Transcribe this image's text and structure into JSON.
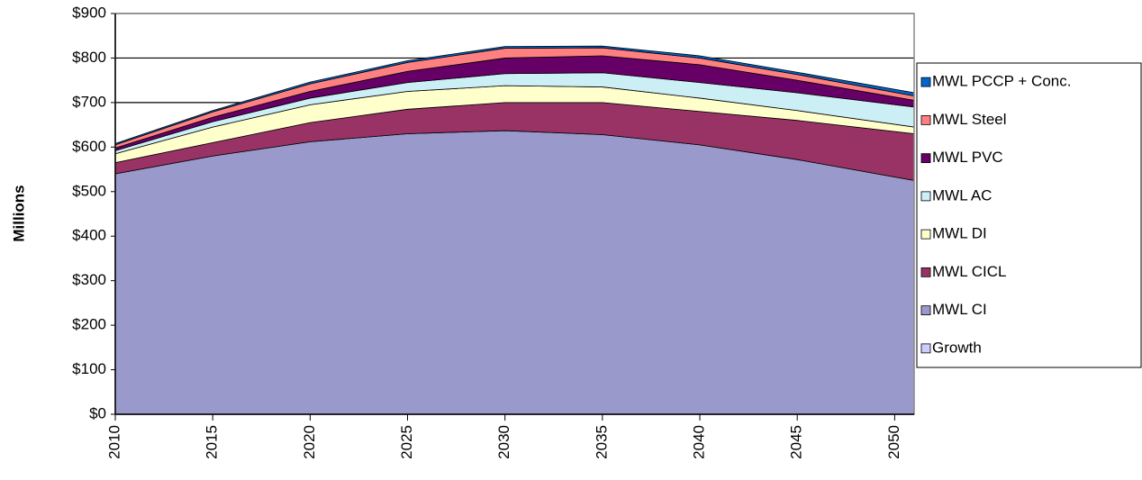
{
  "chart_data": {
    "type": "stacked_area",
    "y_label": "Millions",
    "x": [
      2010,
      2015,
      2020,
      2025,
      2030,
      2035,
      2040,
      2045,
      2051
    ],
    "xlim": [
      2010,
      2051
    ],
    "xticks": [
      2010,
      2015,
      2020,
      2025,
      2030,
      2035,
      2040,
      2045,
      2050
    ],
    "ylim": [
      0,
      900
    ],
    "yticks": [
      {
        "value": 0,
        "label": "$0"
      },
      {
        "value": 100,
        "label": "$100"
      },
      {
        "value": 200,
        "label": "$200"
      },
      {
        "value": 300,
        "label": "$300"
      },
      {
        "value": 400,
        "label": "$400"
      },
      {
        "value": 500,
        "label": "$500"
      },
      {
        "value": 600,
        "label": "$600"
      },
      {
        "value": 700,
        "label": "$700"
      },
      {
        "value": 800,
        "label": "$800"
      },
      {
        "value": 900,
        "label": "$900"
      }
    ],
    "grid": true,
    "legend": "right",
    "series": [
      {
        "name": "Growth",
        "color": "#ccccff",
        "values": [
          0,
          0,
          0,
          0,
          0,
          0,
          0,
          0,
          0
        ]
      },
      {
        "name": "MWL CI",
        "color": "#9999cc",
        "values": [
          540,
          580,
          612,
          630,
          637,
          628,
          605,
          572,
          525
        ]
      },
      {
        "name": "MWL CICL",
        "color": "#993366",
        "values": [
          25,
          30,
          43,
          55,
          63,
          72,
          75,
          88,
          105
        ]
      },
      {
        "name": "MWL DI",
        "color": "#ffffcc",
        "values": [
          20,
          35,
          40,
          40,
          38,
          35,
          30,
          22,
          15
        ]
      },
      {
        "name": "MWL AC",
        "color": "#cceef5",
        "values": [
          7,
          12,
          15,
          20,
          27,
          32,
          35,
          40,
          45
        ]
      },
      {
        "name": "MWL PVC",
        "color": "#660066",
        "values": [
          6,
          10,
          15,
          25,
          35,
          38,
          40,
          28,
          15
        ]
      },
      {
        "name": "MWL Steel",
        "color": "#ff8080",
        "values": [
          7,
          12,
          17,
          20,
          22,
          18,
          15,
          13,
          10
        ]
      },
      {
        "name": "MWL PCCP + Conc.",
        "color": "#0066cc",
        "values": [
          3,
          3,
          4,
          4,
          4,
          4,
          5,
          5,
          7
        ]
      }
    ]
  }
}
